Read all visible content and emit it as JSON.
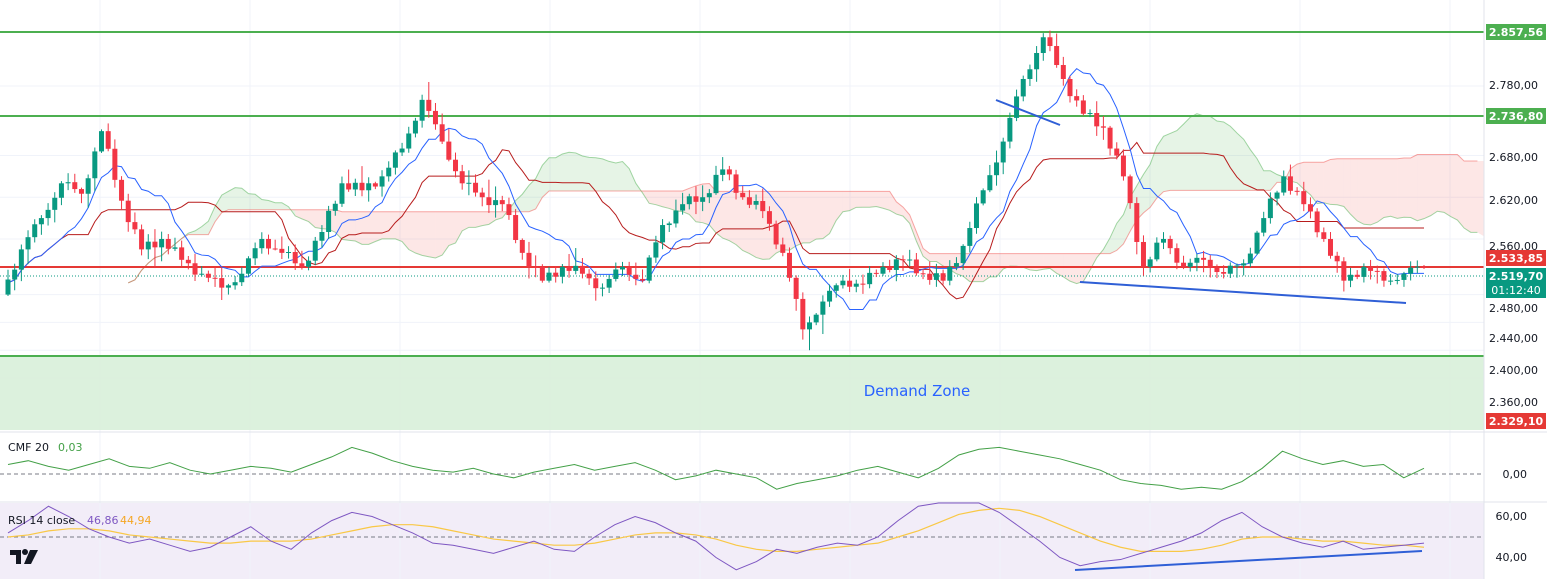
{
  "colors": {
    "up": "#089981",
    "down": "#f23645",
    "kijun": "#b71c1c",
    "tenkan": "#2962ff",
    "cloud_bull": "#4caf50",
    "cloud_bear": "#ef5350",
    "level": "#4caf50",
    "demand_fill": "#d8efd9",
    "cmf": "#43a047",
    "rsi": "#7e57c2",
    "rsi_ma": "#f9c846",
    "trend": "#2f5fd6"
  },
  "price_axis": {
    "ticks": [
      "2.780,00",
      "2.680,00",
      "2.620,00",
      "2.560,00",
      "2.480,00",
      "2.440,00",
      "2.400,00",
      "2.360,00"
    ],
    "tick_values": [
      2780,
      2680,
      2620,
      2560,
      2480,
      2440,
      2400,
      2360
    ]
  },
  "levels": {
    "resistance_1": "2.857,56",
    "resistance_2": "2.736,80",
    "pivot": "2.533,85",
    "current_price": "2.519,70",
    "countdown": "01:12:40",
    "support": "2.329,10"
  },
  "demand_zone": {
    "label": "Demand Zone"
  },
  "cmf": {
    "name": "CMF 20",
    "value": "0,03",
    "axis_tick": "0,00"
  },
  "rsi": {
    "name": "RSI 14 close",
    "value": "46,86",
    "ma_value": "44,94",
    "ticks": [
      "60,00",
      "40,00"
    ]
  },
  "chart_data": [
    {
      "type": "candlestick",
      "panel": "price",
      "ylim": [
        2329.1,
        2890
      ],
      "ohlc_sampled": [
        [
          2480,
          2560,
          2460,
          2545
        ],
        [
          2545,
          2600,
          2520,
          2590
        ],
        [
          2590,
          2650,
          2570,
          2640
        ],
        [
          2640,
          2655,
          2610,
          2625
        ],
        [
          2625,
          2720,
          2600,
          2715
        ],
        [
          2715,
          2730,
          2600,
          2615
        ],
        [
          2615,
          2630,
          2530,
          2545
        ],
        [
          2545,
          2580,
          2510,
          2560
        ],
        [
          2560,
          2575,
          2520,
          2530
        ],
        [
          2530,
          2545,
          2500,
          2510
        ],
        [
          2510,
          2530,
          2470,
          2490
        ],
        [
          2490,
          2520,
          2480,
          2510
        ],
        [
          2510,
          2570,
          2500,
          2560
        ],
        [
          2560,
          2580,
          2530,
          2540
        ],
        [
          2540,
          2560,
          2510,
          2520
        ],
        [
          2520,
          2580,
          2510,
          2570
        ],
        [
          2570,
          2650,
          2560,
          2640
        ],
        [
          2640,
          2670,
          2620,
          2630
        ],
        [
          2630,
          2660,
          2610,
          2650
        ],
        [
          2650,
          2700,
          2640,
          2690
        ],
        [
          2690,
          2770,
          2680,
          2760
        ],
        [
          2760,
          2790,
          2690,
          2700
        ],
        [
          2700,
          2720,
          2630,
          2640
        ],
        [
          2640,
          2660,
          2600,
          2620
        ],
        [
          2620,
          2650,
          2590,
          2610
        ],
        [
          2610,
          2620,
          2530,
          2540
        ],
        [
          2540,
          2560,
          2480,
          2500
        ],
        [
          2500,
          2530,
          2490,
          2520
        ],
        [
          2520,
          2550,
          2500,
          2510
        ],
        [
          2510,
          2520,
          2470,
          2490
        ],
        [
          2490,
          2530,
          2480,
          2520
        ],
        [
          2520,
          2540,
          2490,
          2500
        ],
        [
          2500,
          2590,
          2490,
          2580
        ],
        [
          2580,
          2630,
          2570,
          2610
        ],
        [
          2610,
          2640,
          2590,
          2620
        ],
        [
          2620,
          2680,
          2610,
          2660
        ],
        [
          2660,
          2670,
          2610,
          2620
        ],
        [
          2620,
          2640,
          2590,
          2600
        ],
        [
          2600,
          2610,
          2530,
          2540
        ],
        [
          2540,
          2550,
          2410,
          2430
        ],
        [
          2430,
          2480,
          2390,
          2470
        ],
        [
          2470,
          2510,
          2460,
          2500
        ],
        [
          2500,
          2520,
          2480,
          2495
        ],
        [
          2495,
          2530,
          2490,
          2520
        ],
        [
          2520,
          2540,
          2500,
          2530
        ],
        [
          2530,
          2545,
          2500,
          2510
        ],
        [
          2510,
          2530,
          2490,
          2500
        ],
        [
          2500,
          2560,
          2490,
          2550
        ],
        [
          2550,
          2640,
          2540,
          2630
        ],
        [
          2630,
          2720,
          2610,
          2700
        ],
        [
          2700,
          2800,
          2690,
          2790
        ],
        [
          2790,
          2860,
          2770,
          2850
        ],
        [
          2850,
          2870,
          2780,
          2790
        ],
        [
          2790,
          2800,
          2730,
          2740
        ],
        [
          2740,
          2760,
          2700,
          2720
        ],
        [
          2720,
          2730,
          2640,
          2650
        ],
        [
          2650,
          2660,
          2500,
          2520
        ],
        [
          2520,
          2570,
          2510,
          2560
        ],
        [
          2560,
          2570,
          2510,
          2520
        ],
        [
          2520,
          2540,
          2500,
          2530
        ],
        [
          2530,
          2540,
          2495,
          2510
        ],
        [
          2510,
          2530,
          2490,
          2525
        ],
        [
          2525,
          2600,
          2520,
          2590
        ],
        [
          2590,
          2660,
          2580,
          2650
        ],
        [
          2650,
          2670,
          2600,
          2610
        ],
        [
          2610,
          2620,
          2550,
          2560
        ],
        [
          2560,
          2570,
          2480,
          2500
        ],
        [
          2500,
          2530,
          2490,
          2520
        ],
        [
          2520,
          2530,
          2480,
          2500
        ],
        [
          2500,
          2520,
          2490,
          2510
        ],
        [
          2510,
          2530,
          2500,
          2520
        ]
      ],
      "series": [
        {
          "name": "",
          "kind": "ichimoku-conversion"
        },
        {
          "name": "",
          "kind": "ichimoku-base"
        }
      ]
    },
    {
      "type": "line",
      "panel": "cmf",
      "title": "CMF 20",
      "ylim": [
        -0.25,
        0.25
      ],
      "series": [
        {
          "name": "CMF 20",
          "values": [
            0.05,
            0.07,
            0.04,
            0.02,
            0.05,
            0.08,
            0.04,
            0.03,
            0.06,
            0.02,
            0.0,
            0.02,
            0.04,
            0.03,
            0.01,
            0.05,
            0.09,
            0.14,
            0.11,
            0.07,
            0.04,
            0.02,
            0.01,
            0.03,
            0.0,
            -0.02,
            0.01,
            0.03,
            0.05,
            0.02,
            0.04,
            0.06,
            0.02,
            -0.03,
            -0.01,
            0.02,
            0.0,
            -0.02,
            -0.08,
            -0.05,
            -0.03,
            -0.01,
            0.02,
            0.04,
            0.01,
            -0.02,
            0.03,
            0.1,
            0.13,
            0.14,
            0.12,
            0.1,
            0.08,
            0.05,
            0.02,
            -0.03,
            -0.05,
            -0.06,
            -0.08,
            -0.07,
            -0.08,
            -0.04,
            0.03,
            0.12,
            0.08,
            0.05,
            0.07,
            0.04,
            0.05,
            -0.02,
            0.03
          ]
        }
      ]
    },
    {
      "type": "line",
      "panel": "rsi",
      "title": "RSI 14 close",
      "ylim": [
        30,
        70
      ],
      "series": [
        {
          "name": "RSI 14 close",
          "values": [
            52,
            58,
            65,
            60,
            54,
            50,
            47,
            49,
            46,
            43,
            45,
            50,
            55,
            48,
            44,
            52,
            58,
            62,
            60,
            56,
            52,
            47,
            46,
            44,
            42,
            45,
            48,
            44,
            43,
            50,
            56,
            60,
            57,
            52,
            48,
            40,
            34,
            38,
            44,
            42,
            45,
            47,
            46,
            50,
            58,
            65,
            70,
            72,
            68,
            62,
            55,
            48,
            40,
            36,
            38,
            39,
            42,
            45,
            48,
            52,
            58,
            62,
            55,
            50,
            47,
            45,
            48,
            44,
            45,
            46,
            47
          ]
        },
        {
          "name": "",
          "values": [
            50,
            51,
            53,
            54,
            54,
            53,
            51,
            50,
            49,
            48,
            47,
            47,
            48,
            48,
            48,
            49,
            51,
            53,
            55,
            56,
            56,
            55,
            53,
            51,
            49,
            48,
            47,
            46,
            46,
            47,
            49,
            51,
            52,
            52,
            51,
            49,
            46,
            44,
            43,
            43,
            44,
            45,
            46,
            47,
            50,
            53,
            57,
            61,
            63,
            64,
            63,
            60,
            56,
            52,
            48,
            45,
            43,
            43,
            43,
            44,
            46,
            49,
            50,
            50,
            49,
            48,
            48,
            47,
            46,
            46,
            45
          ]
        }
      ]
    }
  ]
}
